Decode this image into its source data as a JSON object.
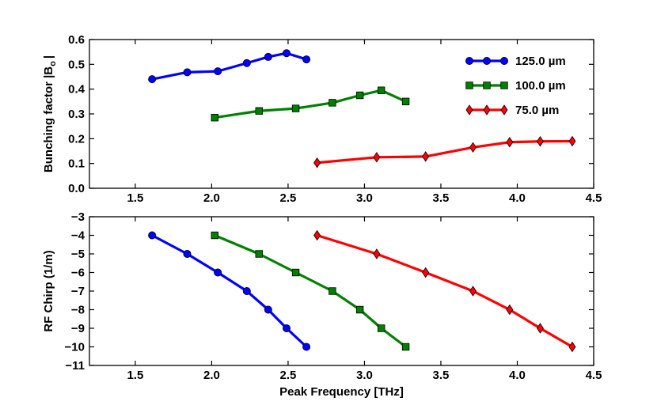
{
  "chart_data": [
    {
      "type": "line",
      "ylabel": "Bunching factor |B",
      "ylabel_subscript": "o",
      "ylabel_suffix": "|",
      "xlim": [
        1.2,
        4.5
      ],
      "ylim": [
        0.0,
        0.6
      ],
      "xticks": [
        "1.5",
        "2.0",
        "2.5",
        "3.0",
        "3.5",
        "4.0",
        "4.5"
      ],
      "xtick_values": [
        1.5,
        2.0,
        2.5,
        3.0,
        3.5,
        4.0,
        4.5
      ],
      "yticks": [
        "0.0",
        "0.1",
        "0.2",
        "0.3",
        "0.4",
        "0.5",
        "0.6"
      ],
      "ytick_values": [
        0.0,
        0.1,
        0.2,
        0.3,
        0.4,
        0.5,
        0.6
      ],
      "legend_position": "top-right",
      "series": [
        {
          "name": "125.0 µm",
          "color": "#0000ff",
          "marker": "circle",
          "x": [
            1.61,
            1.84,
            2.04,
            2.23,
            2.37,
            2.49,
            2.62
          ],
          "y": [
            0.44,
            0.468,
            0.472,
            0.505,
            0.53,
            0.545,
            0.52
          ]
        },
        {
          "name": "100.0 µm",
          "color": "#008000",
          "marker": "square",
          "x": [
            2.02,
            2.31,
            2.55,
            2.79,
            2.97,
            3.11,
            3.27
          ],
          "y": [
            0.285,
            0.312,
            0.322,
            0.345,
            0.375,
            0.395,
            0.35
          ]
        },
        {
          "name": "75.0 µm",
          "color": "#ff0000",
          "marker": "diamond",
          "x": [
            2.69,
            3.08,
            3.4,
            3.71,
            3.95,
            4.15,
            4.36
          ],
          "y": [
            0.103,
            0.125,
            0.128,
            0.165,
            0.186,
            0.189,
            0.19
          ]
        }
      ]
    },
    {
      "type": "line",
      "ylabel": "RF Chirp (1/m)",
      "xlabel": "Peak Frequency [THz]",
      "xlim": [
        1.2,
        4.5
      ],
      "ylim": [
        -11,
        -3
      ],
      "xticks": [
        "1.5",
        "2.0",
        "2.5",
        "3.0",
        "3.5",
        "4.0",
        "4.5"
      ],
      "xtick_values": [
        1.5,
        2.0,
        2.5,
        3.0,
        3.5,
        4.0,
        4.5
      ],
      "yticks": [
        "−11",
        "−10",
        "−9",
        "−8",
        "−7",
        "−6",
        "−5",
        "−4",
        "−3"
      ],
      "ytick_values": [
        -11,
        -10,
        -9,
        -8,
        -7,
        -6,
        -5,
        -4,
        -3
      ],
      "series": [
        {
          "name": "125.0 µm",
          "color": "#0000ff",
          "marker": "circle",
          "x": [
            1.61,
            1.84,
            2.04,
            2.23,
            2.37,
            2.49,
            2.62
          ],
          "y": [
            -4,
            -5,
            -6,
            -7,
            -8,
            -9,
            -10
          ]
        },
        {
          "name": "100.0 µm",
          "color": "#008000",
          "marker": "square",
          "x": [
            2.02,
            2.31,
            2.55,
            2.79,
            2.97,
            3.11,
            3.27
          ],
          "y": [
            -4,
            -5,
            -6,
            -7,
            -8,
            -9,
            -10
          ]
        },
        {
          "name": "75.0 µm",
          "color": "#ff0000",
          "marker": "diamond",
          "x": [
            2.69,
            3.08,
            3.4,
            3.71,
            3.95,
            4.15,
            4.36
          ],
          "y": [
            -4,
            -5,
            -6,
            -7,
            -8,
            -9,
            -10
          ]
        }
      ]
    }
  ]
}
